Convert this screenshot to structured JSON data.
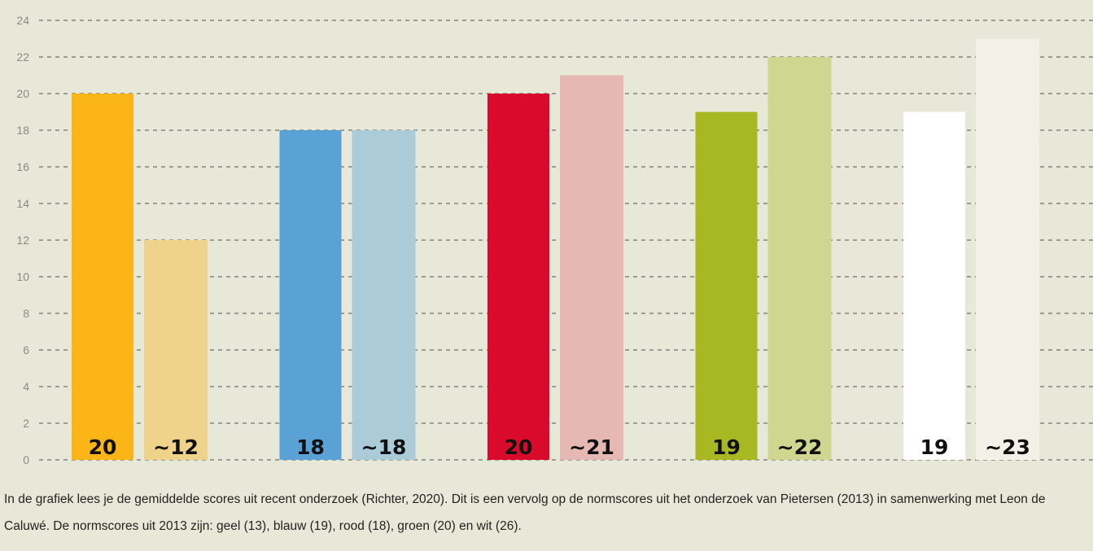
{
  "chart_data": {
    "type": "bar",
    "title": "",
    "xlabel": "",
    "ylabel": "",
    "ylim": [
      0,
      24
    ],
    "yticks": [
      0,
      2,
      4,
      6,
      8,
      10,
      12,
      14,
      16,
      18,
      20,
      22,
      24
    ],
    "grid": true,
    "legend": "none",
    "groups": [
      {
        "name": "geel",
        "bars": [
          {
            "value": 20,
            "label": "20",
            "color": "#fbb517"
          },
          {
            "value": 12,
            "label": "~12",
            "color": "#f0d38a"
          }
        ]
      },
      {
        "name": "blauw",
        "bars": [
          {
            "value": 18,
            "label": "18",
            "color": "#5aa2d6"
          },
          {
            "value": 18,
            "label": "~18",
            "color": "#abcbd8"
          }
        ]
      },
      {
        "name": "rood",
        "bars": [
          {
            "value": 20,
            "label": "20",
            "color": "#d90a2c"
          },
          {
            "value": 21,
            "label": "~21",
            "color": "#e6b8b4"
          }
        ]
      },
      {
        "name": "groen",
        "bars": [
          {
            "value": 19,
            "label": "19",
            "color": "#a8b822"
          },
          {
            "value": 22,
            "label": "~22",
            "color": "#cfd690"
          }
        ]
      },
      {
        "name": "wit",
        "bars": [
          {
            "value": 19,
            "label": "19",
            "color": "#ffffff"
          },
          {
            "value": 23,
            "label": "~23",
            "color": "#f2f1e8"
          }
        ]
      }
    ]
  },
  "caption": "In de grafiek lees je de gemiddelde scores uit recent onderzoek (Richter, 2020). Dit is een vervolg op de normscores uit het onderzoek van Pietersen (2013) in samenwerking met Leon de Caluwé. De normscores uit 2013 zijn: geel (13), blauw (19), rood (18), groen (20) en wit (26)."
}
